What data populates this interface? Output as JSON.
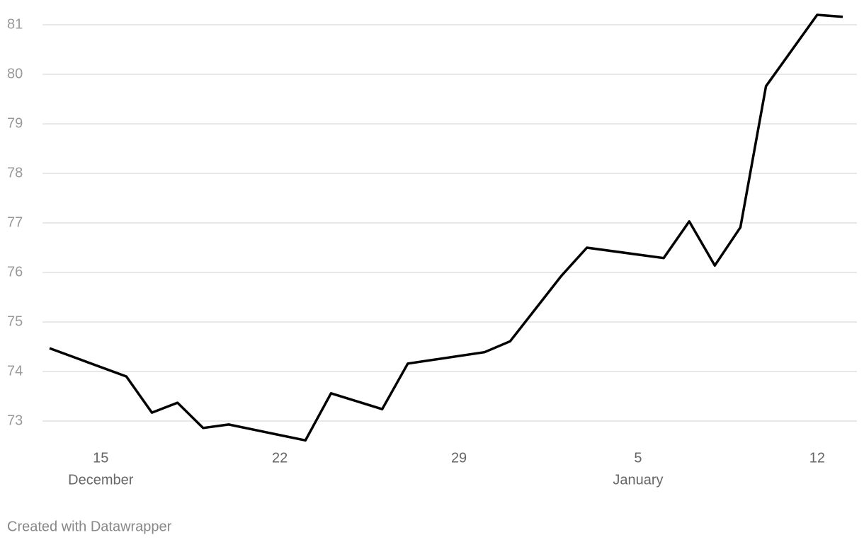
{
  "chart_data": {
    "type": "line",
    "x": [
      "12-13",
      "12-16",
      "12-17",
      "12-18",
      "12-19",
      "12-20",
      "12-23",
      "12-24",
      "12-26",
      "12-27",
      "12-30",
      "12-31",
      "01-02",
      "01-03",
      "01-06",
      "01-07",
      "01-08",
      "01-09",
      "01-10",
      "01-12",
      "01-13"
    ],
    "series": [
      {
        "color": "#000000",
        "values": [
          74.47,
          73.9,
          73.17,
          73.37,
          72.86,
          72.93,
          72.61,
          73.56,
          73.24,
          74.16,
          74.39,
          74.61,
          75.93,
          76.5,
          76.29,
          77.03,
          76.14,
          76.91,
          79.76,
          81.2,
          81.16
        ]
      }
    ],
    "xlim": [
      "12-13",
      "01-13"
    ],
    "xticks": [
      {
        "value": "12-15",
        "label": "15"
      },
      {
        "value": "12-22",
        "label": "22"
      },
      {
        "value": "12-29",
        "label": "29"
      },
      {
        "value": "01-05",
        "label": "5"
      },
      {
        "value": "01-12",
        "label": "12"
      }
    ],
    "x_month_labels": [
      {
        "value": "12-15",
        "label": "December"
      },
      {
        "value": "01-05",
        "label": "January"
      }
    ],
    "ylim": [
      72.5,
      81.3
    ],
    "yticks": [
      73,
      74,
      75,
      76,
      77,
      78,
      79,
      80,
      81
    ],
    "grid": true,
    "credit": "Created with Datawrapper"
  }
}
